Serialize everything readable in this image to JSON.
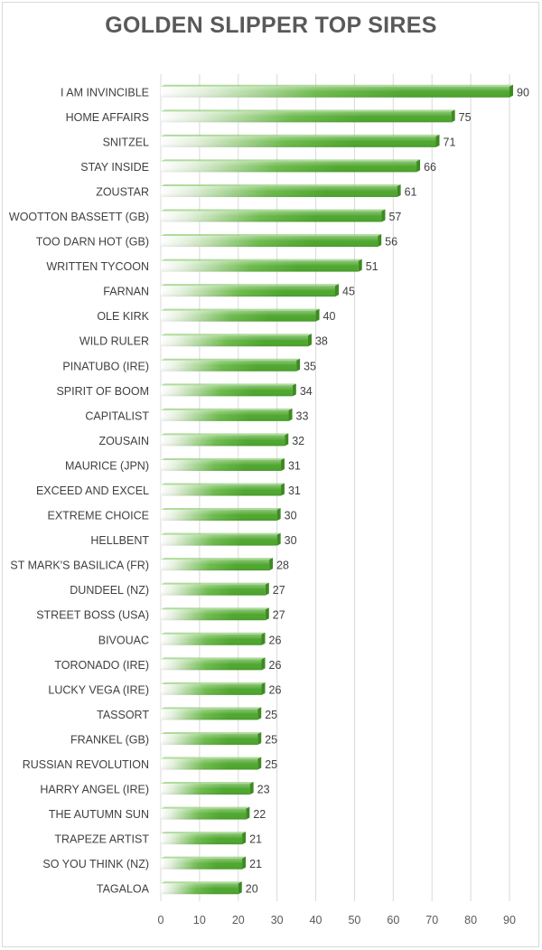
{
  "chart_data": {
    "type": "bar",
    "orientation": "horizontal",
    "title": "GOLDEN SLIPPER TOP SIRES",
    "xlabel": "",
    "ylabel": "",
    "xlim": [
      0,
      90
    ],
    "xticks": [
      0,
      10,
      20,
      30,
      40,
      50,
      60,
      70,
      80,
      90
    ],
    "grid": true,
    "bar_color": "#4ea72e",
    "bar_color_dark": "#3d8a22",
    "gridline_color": "#d9d9d9",
    "categories": [
      "I AM INVINCIBLE",
      "HOME AFFAIRS",
      "SNITZEL",
      "STAY INSIDE",
      "ZOUSTAR",
      "WOOTTON BASSETT (GB)",
      "TOO DARN HOT (GB)",
      "WRITTEN TYCOON",
      "FARNAN",
      "OLE KIRK",
      "WILD RULER",
      "PINATUBO (IRE)",
      "SPIRIT OF BOOM",
      "CAPITALIST",
      "ZOUSAIN",
      "MAURICE (JPN)",
      "EXCEED AND EXCEL",
      "EXTREME CHOICE",
      "HELLBENT",
      "ST MARK'S BASILICA (FR)",
      "DUNDEEL (NZ)",
      "STREET BOSS (USA)",
      "BIVOUAC",
      "TORONADO (IRE)",
      "LUCKY VEGA (IRE)",
      "TASSORT",
      "FRANKEL (GB)",
      "RUSSIAN REVOLUTION",
      "HARRY ANGEL (IRE)",
      "THE AUTUMN SUN",
      "TRAPEZE ARTIST",
      "SO YOU THINK (NZ)",
      "TAGALOA"
    ],
    "values": [
      90,
      75,
      71,
      66,
      61,
      57,
      56,
      51,
      45,
      40,
      38,
      35,
      34,
      33,
      32,
      31,
      31,
      30,
      30,
      28,
      27,
      27,
      26,
      26,
      26,
      25,
      25,
      25,
      23,
      22,
      21,
      21,
      20
    ]
  }
}
